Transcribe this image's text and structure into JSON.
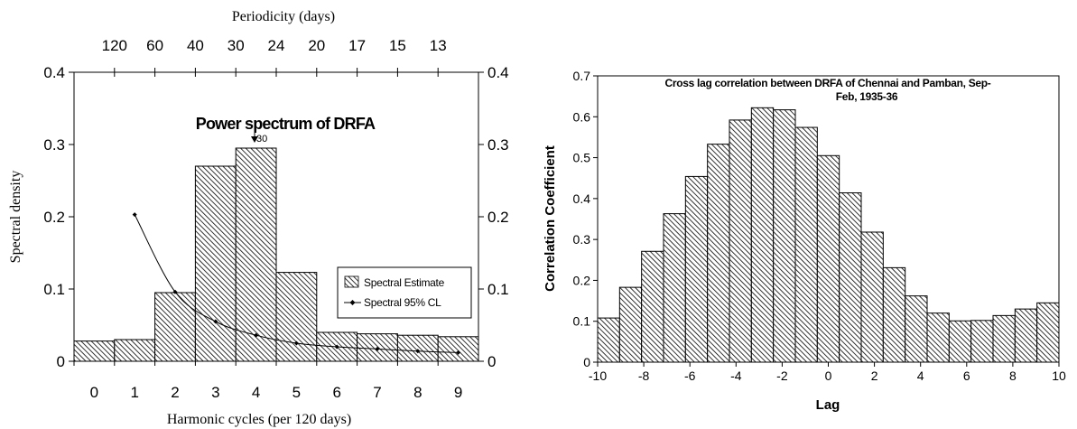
{
  "chart_data": [
    {
      "type": "bar",
      "title": "Power spectrum of DRFA",
      "xlabel": "Harmonic cycles (per 120 days)",
      "ylabel": "Spectral density",
      "top_axis_label": "Periodicity (days)",
      "top_tick_labels": [
        "120",
        "60",
        "40",
        "30",
        "24",
        "20",
        "17",
        "15",
        "13"
      ],
      "annotation": "30",
      "categories": [
        "0",
        "1",
        "2",
        "3",
        "4",
        "5",
        "6",
        "7",
        "8",
        "9"
      ],
      "ylim": [
        0,
        0.4
      ],
      "yticks": [
        "0",
        "0.1",
        "0.2",
        "0.3",
        "0.4"
      ],
      "right_yticks": [
        "0",
        "0.1",
        "0.2",
        "0.3",
        "0.4"
      ],
      "legend_position": "right",
      "series": [
        {
          "name": "Spectral Estimate",
          "type": "bar",
          "values": [
            0.028,
            0.03,
            0.095,
            0.27,
            0.295,
            0.123,
            0.04,
            0.038,
            0.036,
            0.034
          ]
        },
        {
          "name": "Spectral 95% CL",
          "type": "line",
          "x": [
            1.5,
            2.5,
            3.5,
            4.5,
            5.5,
            6.5,
            7.5,
            8.5,
            9.5
          ],
          "values": [
            0.203,
            0.096,
            0.055,
            0.036,
            0.025,
            0.02,
            0.017,
            0.014,
            0.012
          ]
        }
      ]
    },
    {
      "type": "bar",
      "title": "Cross lag correlation between DRFA of Chennai and Pamban, Sep-Feb, 1935-36",
      "xlabel": "Lag",
      "ylabel": "Correlation Coefficient",
      "xlim": [
        -10,
        10
      ],
      "ylim": [
        0,
        0.7
      ],
      "xticks": [
        "-10",
        "-8",
        "-6",
        "-4",
        "-2",
        "0",
        "2",
        "4",
        "6",
        "8",
        "10"
      ],
      "yticks": [
        "0",
        "0.1",
        "0.2",
        "0.3",
        "0.4",
        "0.5",
        "0.6",
        "0.7"
      ],
      "categories": [
        "-10",
        "-9",
        "-8",
        "-7",
        "-6",
        "-5",
        "-4",
        "-3",
        "-2",
        "-1",
        "0",
        "1",
        "2",
        "3",
        "4",
        "5",
        "6",
        "7",
        "8",
        "9",
        "10"
      ],
      "values": [
        0.108,
        0.183,
        0.271,
        0.363,
        0.454,
        0.533,
        0.592,
        0.622,
        0.617,
        0.574,
        0.505,
        0.414,
        0.318,
        0.231,
        0.162,
        0.12,
        0.101,
        0.102,
        0.114,
        0.13,
        0.145
      ]
    }
  ]
}
